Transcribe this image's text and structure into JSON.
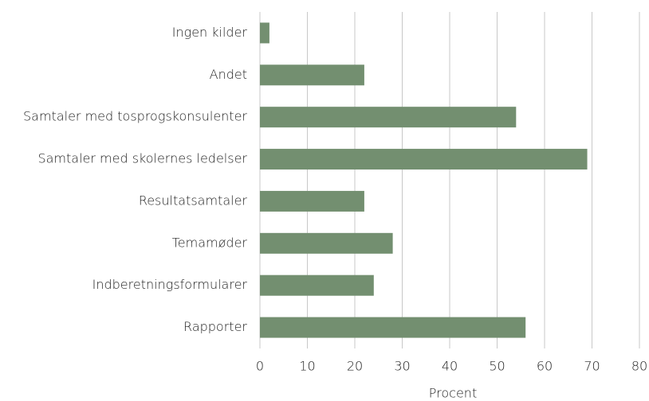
{
  "chart_data": {
    "type": "bar",
    "orientation": "horizontal",
    "categories": [
      "Ingen kilder",
      "Andet",
      "Samtaler med tosprogskonsulenter",
      "Samtaler med skolernes ledelser",
      "Resultatsamtaler",
      "Temamøder",
      "Indberetningsformularer",
      "Rapporter"
    ],
    "values": [
      2,
      22,
      54,
      69,
      22,
      28,
      24,
      56
    ],
    "color": "#738f70",
    "xlabel": "Procent",
    "xlim": [
      0,
      80
    ],
    "xticks": [
      0,
      10,
      20,
      30,
      40,
      50,
      60,
      70,
      80
    ],
    "grid": true
  }
}
